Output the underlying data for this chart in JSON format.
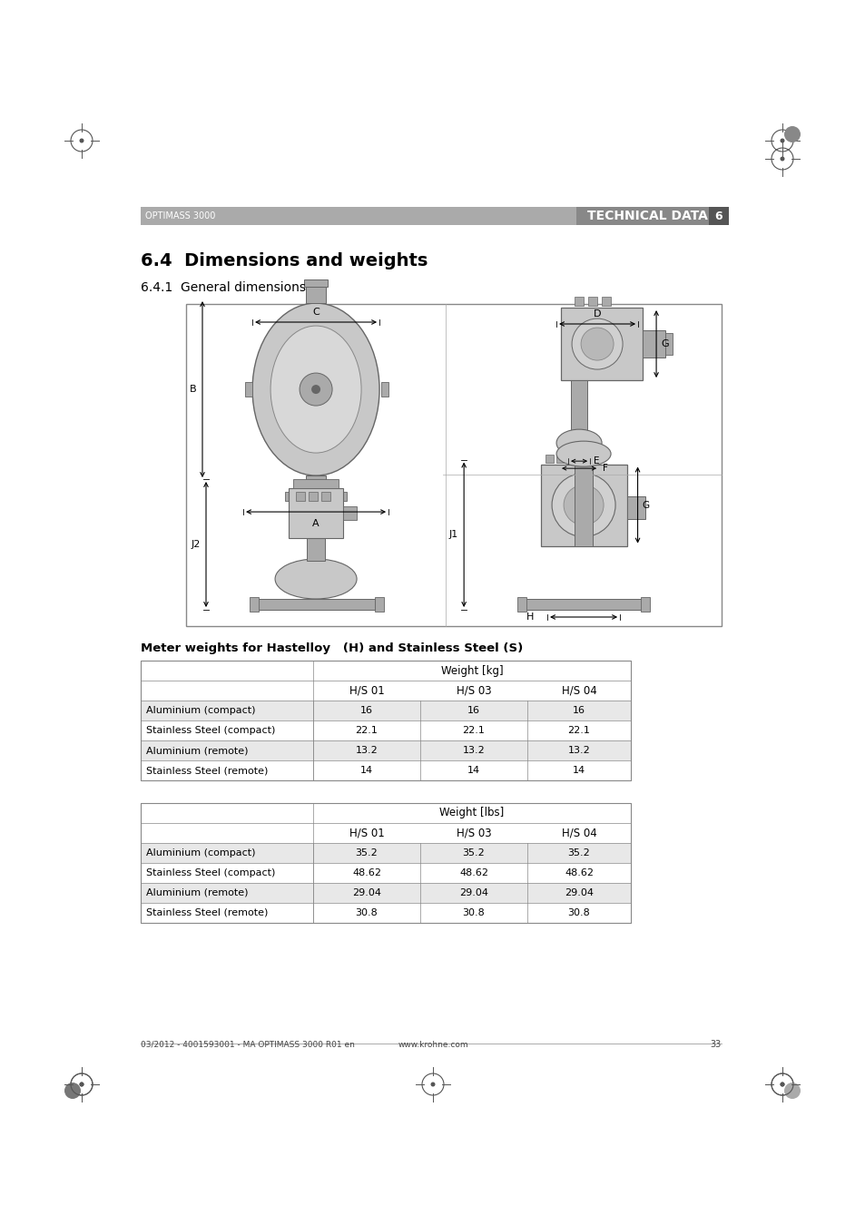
{
  "page_bg": "#ffffff",
  "header_bar_color": "#999999",
  "header_text_left": "OPTIMASS 3000",
  "header_text_right": "TECHNICAL DATA",
  "header_number": "6",
  "section_title": "6.4  Dimensions and weights",
  "subsection_title": "6.4.1  General dimensions",
  "table_title": "Meter weights for Hastelloy   (H) and Stainless Steel (S)",
  "table1_header_main": "Weight [kg]",
  "table2_header_main": "Weight [lbs]",
  "col_headers": [
    "H/S 01",
    "H/S 03",
    "H/S 04"
  ],
  "row_labels": [
    "Aluminium (compact)",
    "Stainless Steel (compact)",
    "Aluminium (remote)",
    "Stainless Steel (remote)"
  ],
  "table1_data": [
    [
      "16",
      "16",
      "16"
    ],
    [
      "22.1",
      "22.1",
      "22.1"
    ],
    [
      "13.2",
      "13.2",
      "13.2"
    ],
    [
      "14",
      "14",
      "14"
    ]
  ],
  "table2_data": [
    [
      "35.2",
      "35.2",
      "35.2"
    ],
    [
      "48.62",
      "48.62",
      "48.62"
    ],
    [
      "29.04",
      "29.04",
      "29.04"
    ],
    [
      "30.8",
      "30.8",
      "30.8"
    ]
  ],
  "row_alt_color": "#e8e8e8",
  "row_white_color": "#ffffff",
  "table_border_color": "#888888",
  "footer_left": "03/2012 - 4001593001 - MA OPTIMASS 3000 R01 en",
  "footer_center": "www.krohne.com",
  "footer_page": "33",
  "label_c": "C",
  "label_d": "D",
  "label_b": "B",
  "label_a": "A",
  "label_e": "E",
  "label_f": "F",
  "label_g": "G",
  "label_j1": "J1",
  "label_j2": "J2",
  "label_h": "H",
  "device_gray_light": "#c8c8c8",
  "device_gray_mid": "#aaaaaa",
  "device_gray_dark": "#888888",
  "device_outline": "#666666"
}
